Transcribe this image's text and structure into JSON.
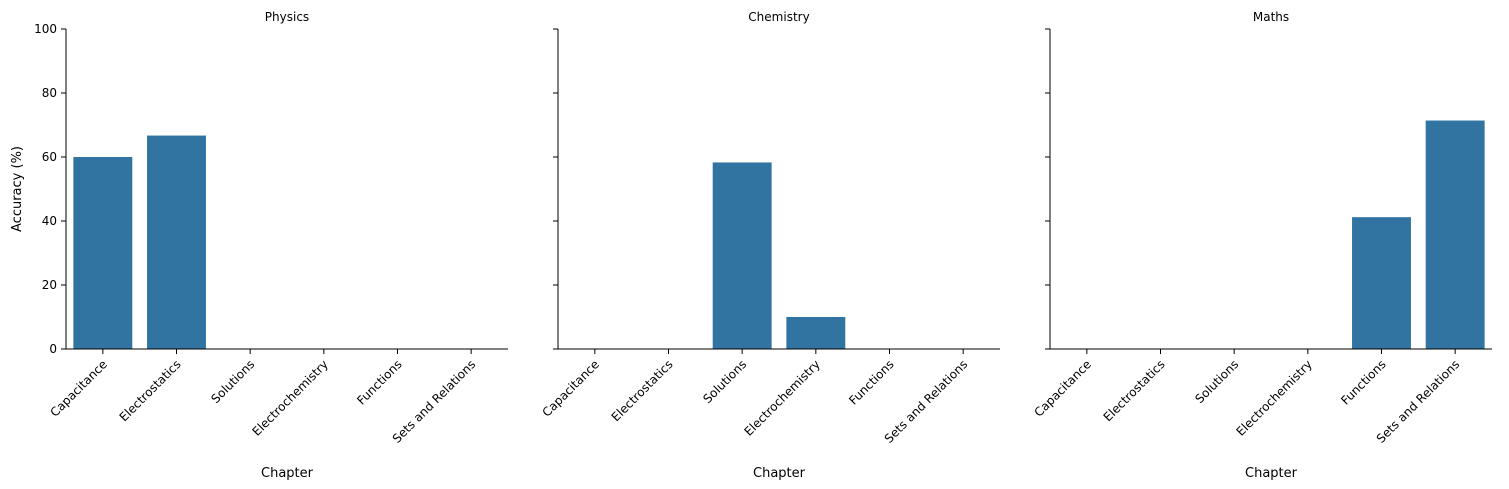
{
  "chart_data": {
    "type": "bar",
    "layout": "facet-grid",
    "categories": [
      "Capacitance",
      "Electrostatics",
      "Solutions",
      "Electrochemistry",
      "Functions",
      "Sets and Relations"
    ],
    "xlabel": "Chapter",
    "ylabel": "Accuracy (%)",
    "ylim": [
      0,
      100
    ],
    "yticks": [
      0,
      20,
      40,
      60,
      80,
      100
    ],
    "grid": false,
    "bar_color": "#3274a1",
    "panels": [
      {
        "title": "Physics",
        "values": [
          60,
          66.7,
          0,
          0,
          0,
          0
        ]
      },
      {
        "title": "Chemistry",
        "values": [
          0,
          0,
          58.3,
          10,
          0,
          0
        ]
      },
      {
        "title": "Maths",
        "values": [
          0,
          0,
          0,
          0,
          41.2,
          71.4
        ]
      }
    ]
  }
}
